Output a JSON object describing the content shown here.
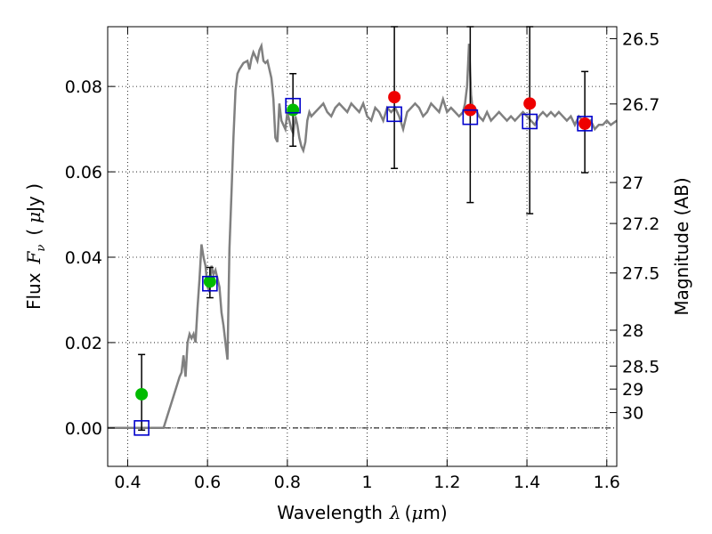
{
  "chart_data": {
    "type": "scatter",
    "title": "",
    "xlabel": "Wavelength",
    "xlabel_symbol": "λ",
    "xlabel_unit_open": "(",
    "xlabel_unit_symbol": "μ",
    "xlabel_unit_rest": "m)",
    "ylabel": "Flux",
    "ylabel_symbol": "F",
    "ylabel_symbol_sub": "ν",
    "ylabel_unit_open": "(",
    "ylabel_unit_symbol": "μ",
    "ylabel_unit_rest": "Jy )",
    "y2label": "Magnitude (AB)",
    "xlim": [
      0.35,
      1.625
    ],
    "ylim": [
      -0.009,
      0.094
    ],
    "grid": true,
    "x_ticks": [
      0.4,
      0.6,
      0.8,
      1.0,
      1.2,
      1.4,
      1.6
    ],
    "x_tick_labels": [
      "0.4",
      "0.6",
      "0.8",
      "1",
      "1.2",
      "1.4",
      "1.6"
    ],
    "y_ticks": [
      0.0,
      0.02,
      0.04,
      0.06,
      0.08
    ],
    "y_tick_labels": [
      "0.00",
      "0.02",
      "0.04",
      "0.06",
      "0.08"
    ],
    "y2_ticks": [
      {
        "label": "26.5",
        "flux": 0.0912
      },
      {
        "label": "26.7",
        "flux": 0.0759
      },
      {
        "label": "27",
        "flux": 0.0575
      },
      {
        "label": "27.2",
        "flux": 0.0479
      },
      {
        "label": "27.5",
        "flux": 0.0363
      },
      {
        "label": "28",
        "flux": 0.0229
      },
      {
        "label": "28.5",
        "flux": 0.0145
      },
      {
        "label": "29",
        "flux": 0.0091
      },
      {
        "label": "30",
        "flux": 0.0036
      }
    ],
    "sed_model": {
      "color": "#808080",
      "x": [
        0.35,
        0.48,
        0.49,
        0.5,
        0.51,
        0.52,
        0.53,
        0.535,
        0.54,
        0.545,
        0.55,
        0.555,
        0.56,
        0.565,
        0.57,
        0.575,
        0.58,
        0.585,
        0.59,
        0.595,
        0.6,
        0.605,
        0.61,
        0.615,
        0.62,
        0.625,
        0.63,
        0.635,
        0.64,
        0.645,
        0.65,
        0.655,
        0.66,
        0.665,
        0.67,
        0.675,
        0.68,
        0.69,
        0.7,
        0.705,
        0.71,
        0.715,
        0.72,
        0.725,
        0.73,
        0.735,
        0.74,
        0.745,
        0.75,
        0.755,
        0.76,
        0.765,
        0.77,
        0.775,
        0.78,
        0.785,
        0.79,
        0.795,
        0.8,
        0.805,
        0.81,
        0.815,
        0.82,
        0.825,
        0.83,
        0.835,
        0.84,
        0.845,
        0.85,
        0.855,
        0.86,
        0.87,
        0.88,
        0.89,
        0.9,
        0.91,
        0.92,
        0.93,
        0.94,
        0.95,
        0.96,
        0.97,
        0.98,
        0.99,
        1.0,
        1.01,
        1.02,
        1.03,
        1.04,
        1.05,
        1.06,
        1.07,
        1.08,
        1.09,
        1.1,
        1.11,
        1.12,
        1.13,
        1.14,
        1.15,
        1.16,
        1.17,
        1.18,
        1.19,
        1.2,
        1.21,
        1.22,
        1.23,
        1.24,
        1.245,
        1.25,
        1.255,
        1.26,
        1.265,
        1.27,
        1.28,
        1.29,
        1.3,
        1.31,
        1.32,
        1.33,
        1.34,
        1.35,
        1.36,
        1.37,
        1.38,
        1.39,
        1.4,
        1.41,
        1.42,
        1.43,
        1.44,
        1.45,
        1.46,
        1.47,
        1.48,
        1.49,
        1.5,
        1.51,
        1.52,
        1.53,
        1.54,
        1.55,
        1.56,
        1.57,
        1.58,
        1.59,
        1.6,
        1.61,
        1.625
      ],
      "y": [
        0.0,
        0.0,
        0.0,
        0.003,
        0.006,
        0.009,
        0.012,
        0.013,
        0.017,
        0.012,
        0.02,
        0.022,
        0.021,
        0.022,
        0.02,
        0.028,
        0.035,
        0.043,
        0.04,
        0.038,
        0.033,
        0.032,
        0.038,
        0.036,
        0.037,
        0.035,
        0.033,
        0.027,
        0.024,
        0.02,
        0.016,
        0.042,
        0.055,
        0.068,
        0.079,
        0.083,
        0.084,
        0.0855,
        0.086,
        0.084,
        0.0865,
        0.088,
        0.087,
        0.086,
        0.0885,
        0.0895,
        0.086,
        0.0855,
        0.086,
        0.084,
        0.082,
        0.077,
        0.068,
        0.067,
        0.076,
        0.072,
        0.071,
        0.07,
        0.074,
        0.072,
        0.07,
        0.069,
        0.073,
        0.071,
        0.068,
        0.066,
        0.065,
        0.067,
        0.072,
        0.074,
        0.073,
        0.074,
        0.075,
        0.076,
        0.074,
        0.073,
        0.075,
        0.076,
        0.075,
        0.074,
        0.076,
        0.075,
        0.074,
        0.076,
        0.073,
        0.072,
        0.075,
        0.074,
        0.072,
        0.075,
        0.074,
        0.075,
        0.073,
        0.07,
        0.074,
        0.075,
        0.076,
        0.075,
        0.073,
        0.074,
        0.076,
        0.075,
        0.074,
        0.077,
        0.074,
        0.075,
        0.074,
        0.073,
        0.074,
        0.076,
        0.08,
        0.09,
        0.078,
        0.074,
        0.075,
        0.073,
        0.072,
        0.074,
        0.072,
        0.073,
        0.074,
        0.073,
        0.072,
        0.073,
        0.072,
        0.073,
        0.074,
        0.073,
        0.072,
        0.071,
        0.073,
        0.074,
        0.073,
        0.074,
        0.073,
        0.074,
        0.073,
        0.072,
        0.073,
        0.071,
        0.073,
        0.072,
        0.071,
        0.072,
        0.07,
        0.071,
        0.071,
        0.072,
        0.071,
        0.072
      ]
    },
    "observed": {
      "color": "#0000cc",
      "marker": "open-square",
      "points": [
        {
          "x": 0.435,
          "y": 0.0,
          "err_lo": 0.0,
          "err_hi": 0.0
        },
        {
          "x": 0.606,
          "y": 0.0338,
          "err_lo": 0.0,
          "err_hi": 0.0
        },
        {
          "x": 0.814,
          "y": 0.0755,
          "err_lo": 0.0,
          "err_hi": 0.0
        },
        {
          "x": 1.068,
          "y": 0.0735,
          "err_lo": 0.0,
          "err_hi": 0.0
        },
        {
          "x": 1.258,
          "y": 0.0728,
          "err_lo": 0.0,
          "err_hi": 0.0
        },
        {
          "x": 1.407,
          "y": 0.0718,
          "err_lo": 0.0,
          "err_hi": 0.0
        },
        {
          "x": 1.545,
          "y": 0.0713,
          "err_lo": 0.0,
          "err_hi": 0.0
        }
      ]
    },
    "error_bars": {
      "color": "#000000",
      "points": [
        {
          "x": 0.435,
          "lo": -0.0005,
          "hi": 0.0172
        },
        {
          "x": 0.606,
          "lo": 0.0305,
          "hi": 0.0376
        },
        {
          "x": 0.814,
          "lo": 0.066,
          "hi": 0.083
        },
        {
          "x": 1.068,
          "lo": 0.0608,
          "hi": 0.094
        },
        {
          "x": 1.258,
          "lo": 0.0528,
          "hi": 0.094
        },
        {
          "x": 1.407,
          "lo": 0.0502,
          "hi": 0.094
        },
        {
          "x": 1.545,
          "lo": 0.0598,
          "hi": 0.0835
        }
      ]
    },
    "model_photometry_green": {
      "color": "#00bb00",
      "points": [
        {
          "x": 0.435,
          "y": 0.0079
        },
        {
          "x": 0.606,
          "y": 0.0343
        },
        {
          "x": 0.814,
          "y": 0.0745
        }
      ]
    },
    "model_photometry_red": {
      "color": "#ee0000",
      "points": [
        {
          "x": 1.068,
          "y": 0.0775
        },
        {
          "x": 1.258,
          "y": 0.0745
        },
        {
          "x": 1.407,
          "y": 0.076
        },
        {
          "x": 1.545,
          "y": 0.0713
        }
      ]
    }
  }
}
